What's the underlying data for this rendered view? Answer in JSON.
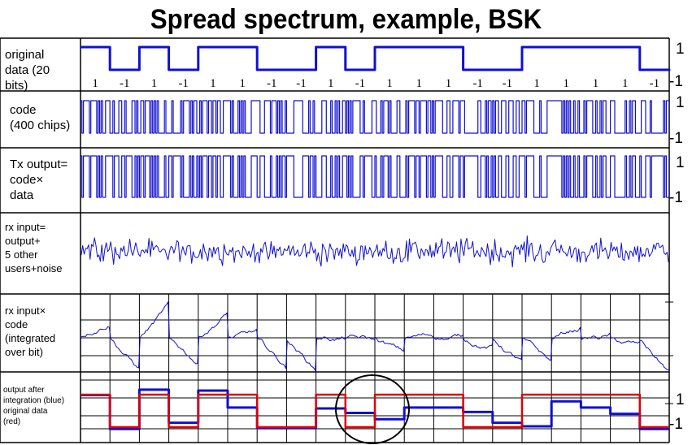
{
  "title": "Spread spectrum, example, BSK",
  "bits": [
    1,
    -1,
    1,
    -1,
    1,
    1,
    -1,
    -1,
    1,
    -1,
    1,
    1,
    1,
    -1,
    -1,
    1,
    1,
    1,
    1,
    -1
  ],
  "bit_labels": [
    "1",
    "-1",
    "1",
    "-1",
    "1",
    "1",
    "-1",
    "-1",
    "1",
    "-1",
    "1",
    "1",
    "1",
    "-1",
    "-1",
    "1",
    "1",
    "1",
    "1",
    "-1"
  ],
  "rows": {
    "data": {
      "label": [
        "original",
        "data (20",
        "bits)"
      ],
      "right": [
        "1",
        "-1"
      ]
    },
    "code": {
      "label": [
        "code",
        "(400 chips)"
      ],
      "right": [
        "1",
        "-1"
      ]
    },
    "tx": {
      "label": [
        "Tx output=",
        "code×",
        "data"
      ],
      "right": [
        "1",
        "-1"
      ]
    },
    "rx": {
      "label": [
        "rx input=",
        "output+",
        "5 other",
        "users+noise"
      ]
    },
    "integ": {
      "label": [
        "rx input×",
        "code",
        "(integrated",
        "over bit)"
      ]
    },
    "out": {
      "label": [
        "output after",
        "integration (blue)",
        "original data",
        "(red)"
      ],
      "right": [
        "1",
        "-1"
      ]
    }
  },
  "integrated_outputs": [
    0.75,
    -1.15,
    1.05,
    -0.8,
    1.0,
    0.05,
    -1.1,
    -1.1,
    0.0,
    -0.25,
    -0.6,
    0.05,
    0.05,
    -0.2,
    -0.8,
    -1.0,
    0.4,
    0.05,
    -0.3,
    -1.15
  ],
  "colors": {
    "signal": "#1010d0",
    "original": "#e00000",
    "grid": "#000000"
  }
}
